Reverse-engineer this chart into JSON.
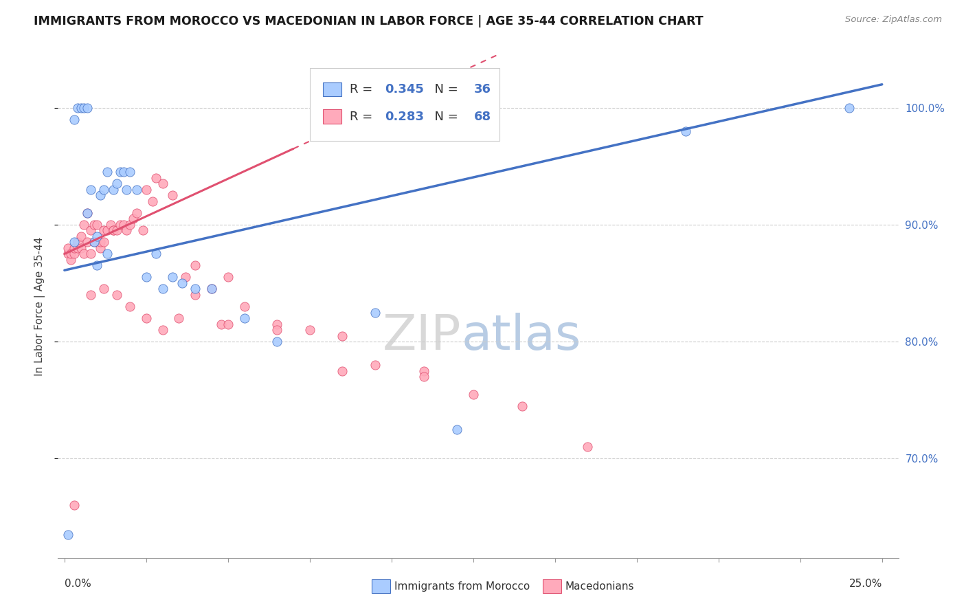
{
  "title": "IMMIGRANTS FROM MOROCCO VS MACEDONIAN IN LABOR FORCE | AGE 35-44 CORRELATION CHART",
  "source": "Source: ZipAtlas.com",
  "ylabel": "In Labor Force | Age 35-44",
  "xlim": [
    -0.002,
    0.255
  ],
  "ylim": [
    0.615,
    1.045
  ],
  "yticks": [
    0.7,
    0.8,
    0.9,
    1.0
  ],
  "ytick_labels": [
    "70.0%",
    "80.0%",
    "90.0%",
    "100.0%"
  ],
  "legend_R_morocco": "0.345",
  "legend_N_morocco": "36",
  "legend_R_macedonian": "0.283",
  "legend_N_macedonian": "68",
  "color_morocco_fill": "#aaccff",
  "color_morocco_edge": "#4472c4",
  "color_macedonian_fill": "#ffaabb",
  "color_macedonian_edge": "#e05070",
  "color_trendline_morocco": "#4472c4",
  "color_trendline_macedonian": "#e05070",
  "color_right_axis": "#4472c4",
  "watermark_zip": "ZIP",
  "watermark_atlas": "atlas",
  "morocco_x": [
    0.001,
    0.003,
    0.004,
    0.005,
    0.006,
    0.007,
    0.008,
    0.009,
    0.01,
    0.011,
    0.012,
    0.013,
    0.015,
    0.016,
    0.017,
    0.018,
    0.019,
    0.02,
    0.022,
    0.025,
    0.028,
    0.03,
    0.033,
    0.036,
    0.04,
    0.045,
    0.055,
    0.065,
    0.095,
    0.12,
    0.19,
    0.24,
    0.003,
    0.007,
    0.01,
    0.013
  ],
  "morocco_y": [
    0.635,
    0.99,
    1.0,
    1.0,
    1.0,
    1.0,
    0.93,
    0.885,
    0.89,
    0.925,
    0.93,
    0.945,
    0.93,
    0.935,
    0.945,
    0.945,
    0.93,
    0.945,
    0.93,
    0.855,
    0.875,
    0.845,
    0.855,
    0.85,
    0.845,
    0.845,
    0.82,
    0.8,
    0.825,
    0.725,
    0.98,
    1.0,
    0.885,
    0.91,
    0.865,
    0.875
  ],
  "macedonian_x": [
    0.001,
    0.001,
    0.002,
    0.002,
    0.003,
    0.003,
    0.004,
    0.004,
    0.005,
    0.005,
    0.006,
    0.006,
    0.007,
    0.007,
    0.008,
    0.008,
    0.009,
    0.009,
    0.01,
    0.01,
    0.011,
    0.011,
    0.012,
    0.012,
    0.013,
    0.014,
    0.015,
    0.015,
    0.016,
    0.017,
    0.018,
    0.019,
    0.02,
    0.021,
    0.022,
    0.024,
    0.025,
    0.027,
    0.028,
    0.03,
    0.033,
    0.037,
    0.04,
    0.045,
    0.048,
    0.05,
    0.055,
    0.065,
    0.075,
    0.085,
    0.095,
    0.11,
    0.125,
    0.14,
    0.16,
    0.003,
    0.008,
    0.012,
    0.016,
    0.02,
    0.025,
    0.03,
    0.035,
    0.04,
    0.05,
    0.065,
    0.085,
    0.11
  ],
  "macedonian_y": [
    0.875,
    0.88,
    0.87,
    0.875,
    0.875,
    0.88,
    0.88,
    0.885,
    0.88,
    0.89,
    0.875,
    0.9,
    0.885,
    0.91,
    0.875,
    0.895,
    0.885,
    0.9,
    0.885,
    0.9,
    0.88,
    0.885,
    0.885,
    0.895,
    0.895,
    0.9,
    0.895,
    0.895,
    0.895,
    0.9,
    0.9,
    0.895,
    0.9,
    0.905,
    0.91,
    0.895,
    0.93,
    0.92,
    0.94,
    0.935,
    0.925,
    0.855,
    0.865,
    0.845,
    0.815,
    0.855,
    0.83,
    0.815,
    0.81,
    0.805,
    0.78,
    0.775,
    0.755,
    0.745,
    0.71,
    0.66,
    0.84,
    0.845,
    0.84,
    0.83,
    0.82,
    0.81,
    0.82,
    0.84,
    0.815,
    0.81,
    0.775,
    0.77
  ],
  "trendline_morocco_x0": 0.0,
  "trendline_morocco_y0": 0.861,
  "trendline_morocco_x1": 0.25,
  "trendline_morocco_y1": 1.02,
  "trendline_macedonian_x0": 0.0,
  "trendline_macedonian_y0": 0.875,
  "trendline_macedonian_x1": 0.07,
  "trendline_macedonian_y1": 0.965
}
